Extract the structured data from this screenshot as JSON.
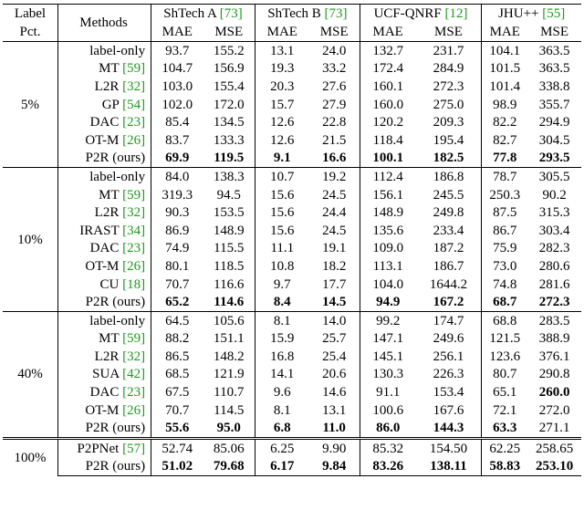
{
  "header": {
    "label_pct": "Label Pct.",
    "methods": "Methods",
    "datasets": [
      {
        "name": "ShTech A",
        "ref": "[73]"
      },
      {
        "name": "ShTech B",
        "ref": "[73]"
      },
      {
        "name": "UCF-QNRF",
        "ref": "[12]"
      },
      {
        "name": "JHU++",
        "ref": "[55]"
      }
    ],
    "metrics": [
      "MAE",
      "MSE",
      "MAE",
      "MSE",
      "MAE",
      "MSE",
      "MAE",
      "MSE"
    ]
  },
  "groups": [
    {
      "label": "5%",
      "rows": [
        {
          "method": "label-only",
          "values": [
            "93.7",
            "155.2",
            "13.1",
            "24.0",
            "132.7",
            "231.7",
            "104.1",
            "363.5"
          ]
        },
        {
          "method": "MT",
          "ref": "[59]",
          "values": [
            "104.7",
            "156.9",
            "19.3",
            "33.2",
            "172.4",
            "284.9",
            "101.5",
            "363.5"
          ]
        },
        {
          "method": "L2R",
          "ref": "[32]",
          "values": [
            "103.0",
            "155.4",
            "20.3",
            "27.6",
            "160.1",
            "272.3",
            "101.4",
            "338.8"
          ]
        },
        {
          "method": "GP",
          "ref": "[54]",
          "values": [
            "102.0",
            "172.0",
            "15.7",
            "27.9",
            "160.0",
            "275.0",
            "98.9",
            "355.7"
          ]
        },
        {
          "method": "DAC",
          "ref": "[23]",
          "values": [
            "85.4",
            "134.5",
            "12.6",
            "22.8",
            "120.2",
            "209.3",
            "82.2",
            "294.9"
          ]
        },
        {
          "method": "OT-M",
          "ref": "[26]",
          "values": [
            "83.7",
            "133.3",
            "12.6",
            "21.5",
            "118.4",
            "195.4",
            "82.7",
            "304.5"
          ]
        },
        {
          "method": "P2R (ours)",
          "values": [
            "69.9",
            "119.5",
            "9.1",
            "16.6",
            "100.1",
            "182.5",
            "77.8",
            "293.5"
          ],
          "bold": [
            true,
            true,
            true,
            true,
            true,
            true,
            true,
            true
          ]
        }
      ]
    },
    {
      "label": "10%",
      "rows": [
        {
          "method": "label-only",
          "values": [
            "84.0",
            "138.3",
            "10.7",
            "19.2",
            "112.4",
            "186.8",
            "78.7",
            "305.5"
          ]
        },
        {
          "method": "MT",
          "ref": "[59]",
          "values": [
            "319.3",
            "94.5",
            "15.6",
            "24.5",
            "156.1",
            "245.5",
            "250.3",
            "90.2"
          ]
        },
        {
          "method": "L2R",
          "ref": "[32]",
          "values": [
            "90.3",
            "153.5",
            "15.6",
            "24.4",
            "148.9",
            "249.8",
            "87.5",
            "315.3"
          ]
        },
        {
          "method": "IRAST",
          "ref": "[34]",
          "values": [
            "86.9",
            "148.9",
            "15.6",
            "24.5",
            "135.6",
            "233.4",
            "86.7",
            "303.4"
          ]
        },
        {
          "method": "DAC",
          "ref": "[23]",
          "values": [
            "74.9",
            "115.5",
            "11.1",
            "19.1",
            "109.0",
            "187.2",
            "75.9",
            "282.3"
          ]
        },
        {
          "method": "OT-M",
          "ref": "[26]",
          "values": [
            "80.1",
            "118.5",
            "10.8",
            "18.2",
            "113.1",
            "186.7",
            "73.0",
            "280.6"
          ]
        },
        {
          "method": "CU",
          "ref": "[18]",
          "values": [
            "70.7",
            "116.6",
            "9.7",
            "17.7",
            "104.0",
            "1644.2",
            "74.8",
            "281.6"
          ]
        },
        {
          "method": "P2R (ours)",
          "values": [
            "65.2",
            "114.6",
            "8.4",
            "14.5",
            "94.9",
            "167.2",
            "68.7",
            "272.3"
          ],
          "bold": [
            true,
            true,
            true,
            true,
            true,
            true,
            true,
            true
          ]
        }
      ]
    },
    {
      "label": "40%",
      "rows": [
        {
          "method": "label-only",
          "values": [
            "64.5",
            "105.6",
            "8.1",
            "14.0",
            "99.2",
            "174.7",
            "68.8",
            "283.5"
          ]
        },
        {
          "method": "MT",
          "ref": "[59]",
          "values": [
            "88.2",
            "151.1",
            "15.9",
            "25.7",
            "147.1",
            "249.6",
            "121.5",
            "388.9"
          ]
        },
        {
          "method": "L2R",
          "ref": "[32]",
          "values": [
            "86.5",
            "148.2",
            "16.8",
            "25.4",
            "145.1",
            "256.1",
            "123.6",
            "376.1"
          ]
        },
        {
          "method": "SUA",
          "ref": "[42]",
          "values": [
            "68.5",
            "121.9",
            "14.1",
            "20.6",
            "130.3",
            "226.3",
            "80.7",
            "290.8"
          ]
        },
        {
          "method": "DAC",
          "ref": "[23]",
          "values": [
            "67.5",
            "110.7",
            "9.6",
            "14.6",
            "91.1",
            "153.4",
            "65.1",
            "260.0"
          ],
          "bold": [
            false,
            false,
            false,
            false,
            false,
            false,
            false,
            true
          ]
        },
        {
          "method": "OT-M",
          "ref": "[26]",
          "values": [
            "70.7",
            "114.5",
            "8.1",
            "13.1",
            "100.6",
            "167.6",
            "72.1",
            "272.0"
          ]
        },
        {
          "method": "P2R (ours)",
          "values": [
            "55.6",
            "95.0",
            "6.8",
            "11.0",
            "86.0",
            "144.3",
            "63.3",
            "271.1"
          ],
          "bold": [
            true,
            true,
            true,
            true,
            true,
            true,
            true,
            false
          ]
        }
      ]
    },
    {
      "label": "100%",
      "rows": [
        {
          "method": "P2PNet",
          "ref": "[57]",
          "values": [
            "52.74",
            "85.06",
            "6.25",
            "9.90",
            "85.32",
            "154.50",
            "62.25",
            "258.65"
          ]
        },
        {
          "method": "P2R (ours)",
          "values": [
            "51.02",
            "79.68",
            "6.17",
            "9.84",
            "83.26",
            "138.11",
            "58.83",
            "253.10"
          ],
          "bold": [
            true,
            true,
            true,
            true,
            true,
            true,
            true,
            true
          ]
        }
      ]
    }
  ]
}
